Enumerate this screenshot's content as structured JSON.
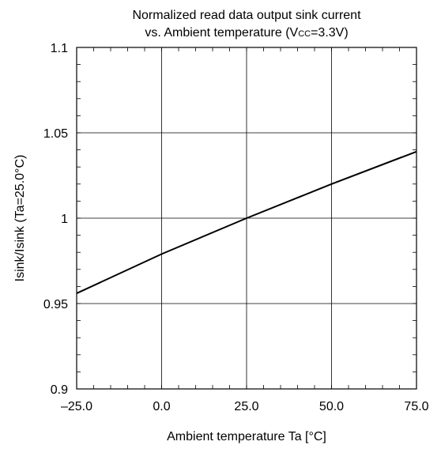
{
  "chart_data": {
    "type": "line",
    "title_line1": "Normalized read data output sink current",
    "title_line2_prefix": "vs. Ambient temperature (V",
    "title_line2_subscript": "CC",
    "title_line2_suffix": "=3.3V)",
    "xlabel": "Ambient temperature Ta [°C]",
    "ylabel": "Isink/Isink (Ta=25.0°C)",
    "xlim": [
      -25,
      75
    ],
    "ylim": [
      0.9,
      1.1
    ],
    "x_ticks": [
      -25,
      0,
      25,
      50,
      75
    ],
    "x_tick_labels": [
      "–25.0",
      "0.0",
      "25.0",
      "50.0",
      "75.0"
    ],
    "y_ticks": [
      0.9,
      0.95,
      1.0,
      1.05,
      1.1
    ],
    "y_tick_labels": [
      "0.9",
      "0.95",
      "1",
      "1.05",
      "1.1"
    ],
    "grid": true,
    "series": [
      {
        "x": [
          -25,
          0,
          25,
          50,
          75
        ],
        "y": [
          0.956,
          0.979,
          1.0,
          1.02,
          1.039
        ]
      }
    ]
  }
}
